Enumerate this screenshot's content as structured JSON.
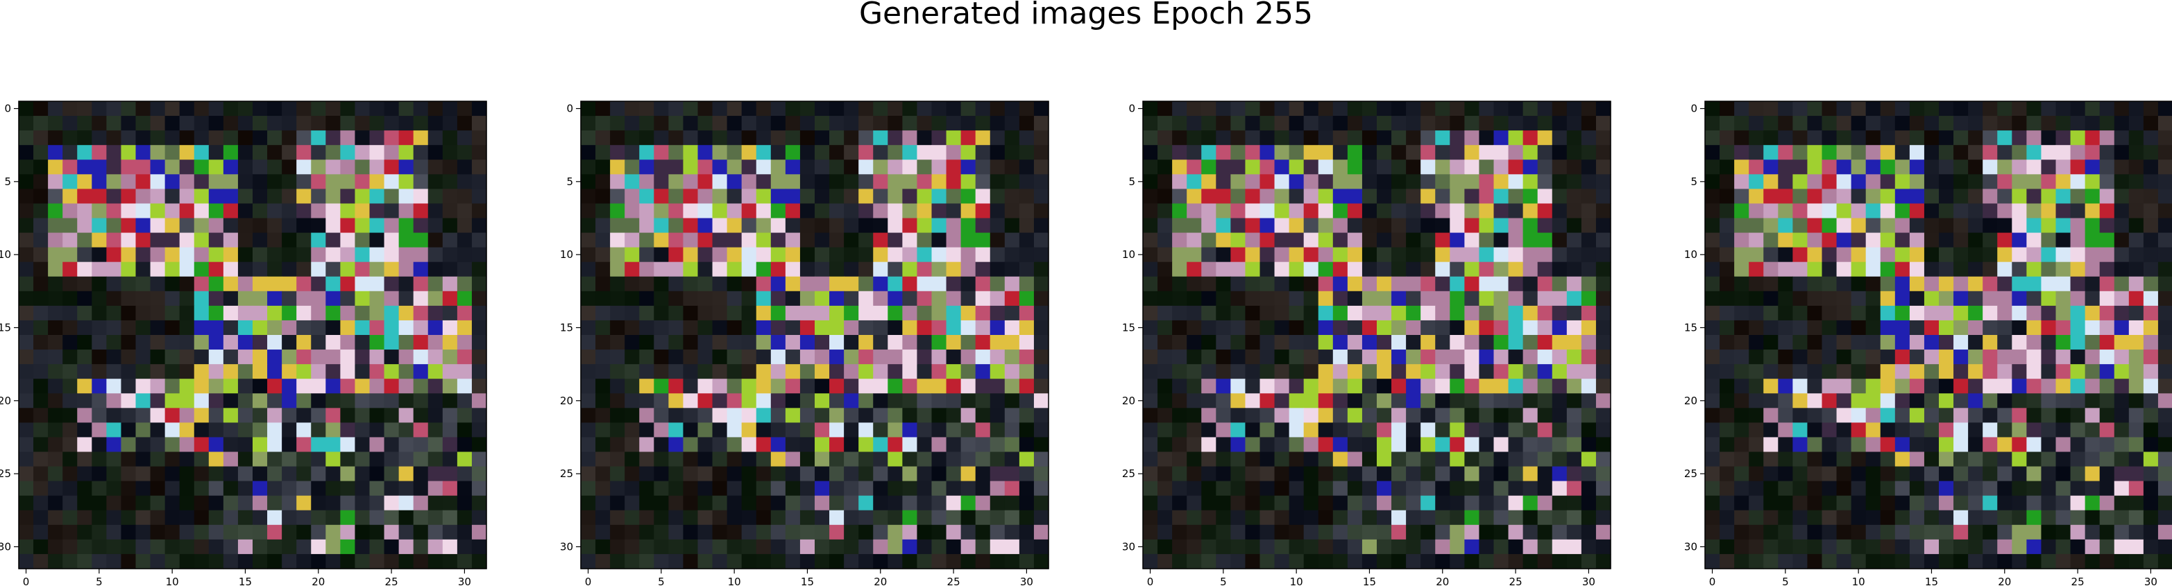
{
  "figure": {
    "title": "Generated images Epoch 255",
    "panel_count": 4,
    "image_grid": {
      "rows": 32,
      "cols": 32
    },
    "x_ticks": [
      "0",
      "5",
      "10",
      "15",
      "20",
      "25",
      "30"
    ],
    "y_ticks": [
      "0",
      "5",
      "10",
      "15",
      "20",
      "25",
      "30"
    ],
    "colors": {
      "background": "#ffffff",
      "axis": "#000000",
      "pixel_dark": "#050805",
      "pixel_palette": [
        "#f0d8e8",
        "#c8a0c0",
        "#8ca060",
        "#a0d030",
        "#c05070",
        "#5a7048",
        "#3c2a44",
        "#2020b0",
        "#20a020",
        "#d8e8f8",
        "#c02030",
        "#30c0c0",
        "#e0c040",
        "#b080a0"
      ]
    }
  }
}
